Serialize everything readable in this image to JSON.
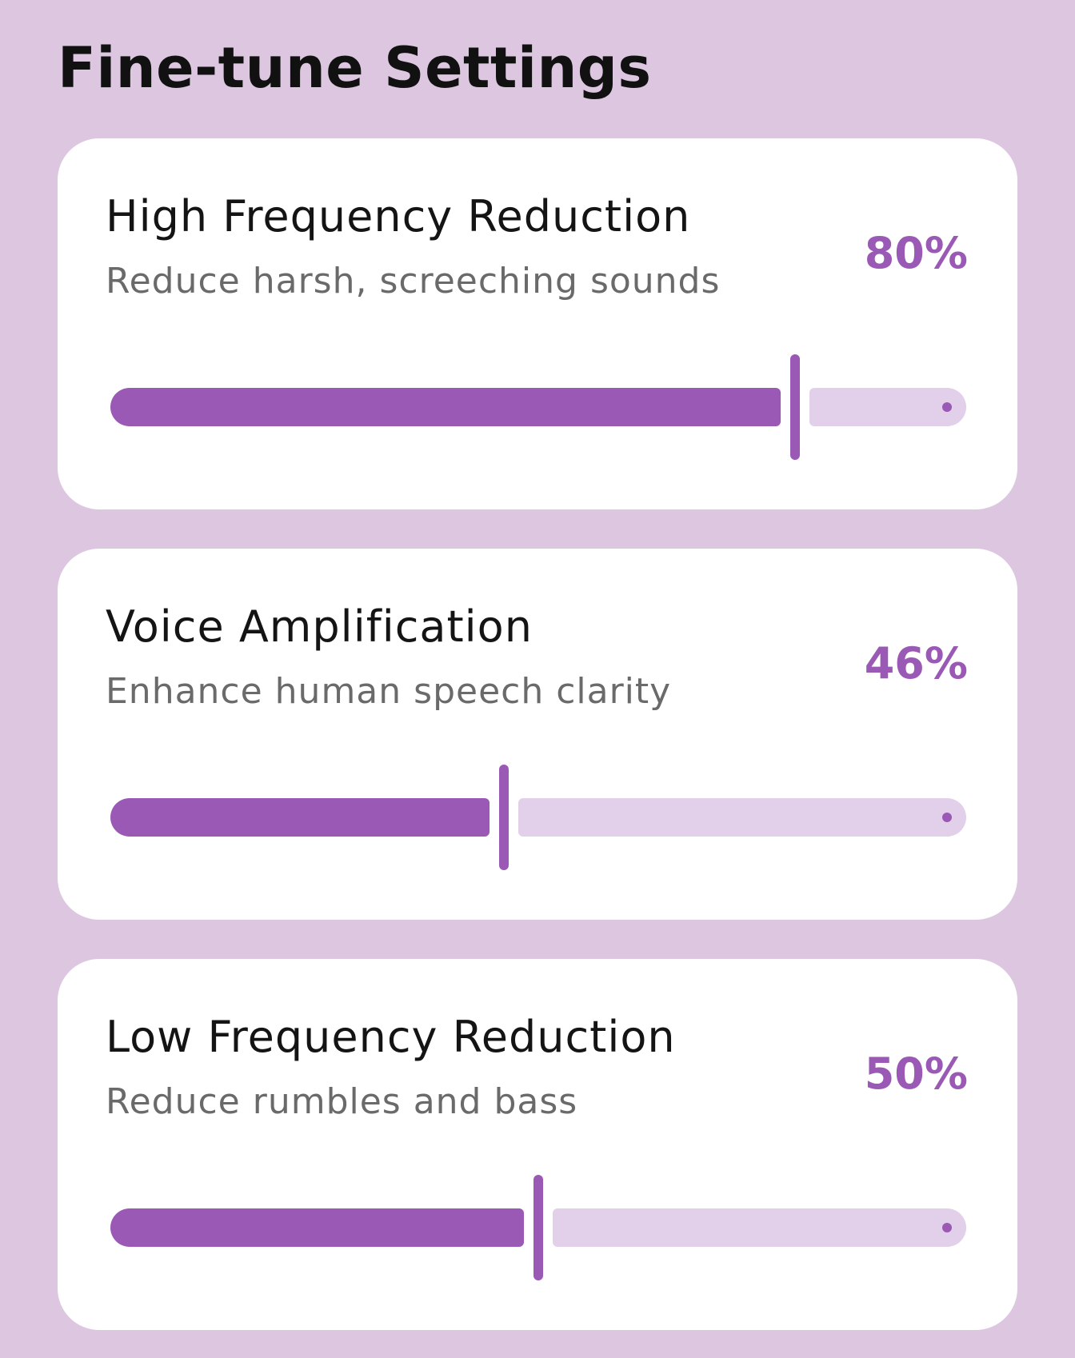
{
  "page": {
    "title": "Fine-tune Settings"
  },
  "colors": {
    "background": "#dcc6e0",
    "card": "#ffffff",
    "accent": "#9b59b6",
    "track_inactive": "#e2cfe9"
  },
  "settings": [
    {
      "title": "High Frequency Reduction",
      "description": "Reduce harsh, screeching sounds",
      "value_label": "80%",
      "value": 80
    },
    {
      "title": "Voice Amplification",
      "description": "Enhance human speech clarity",
      "value_label": "46%",
      "value": 46
    },
    {
      "title": "Low Frequency Reduction",
      "description": "Reduce rumbles and bass",
      "value_label": "50%",
      "value": 50
    }
  ]
}
